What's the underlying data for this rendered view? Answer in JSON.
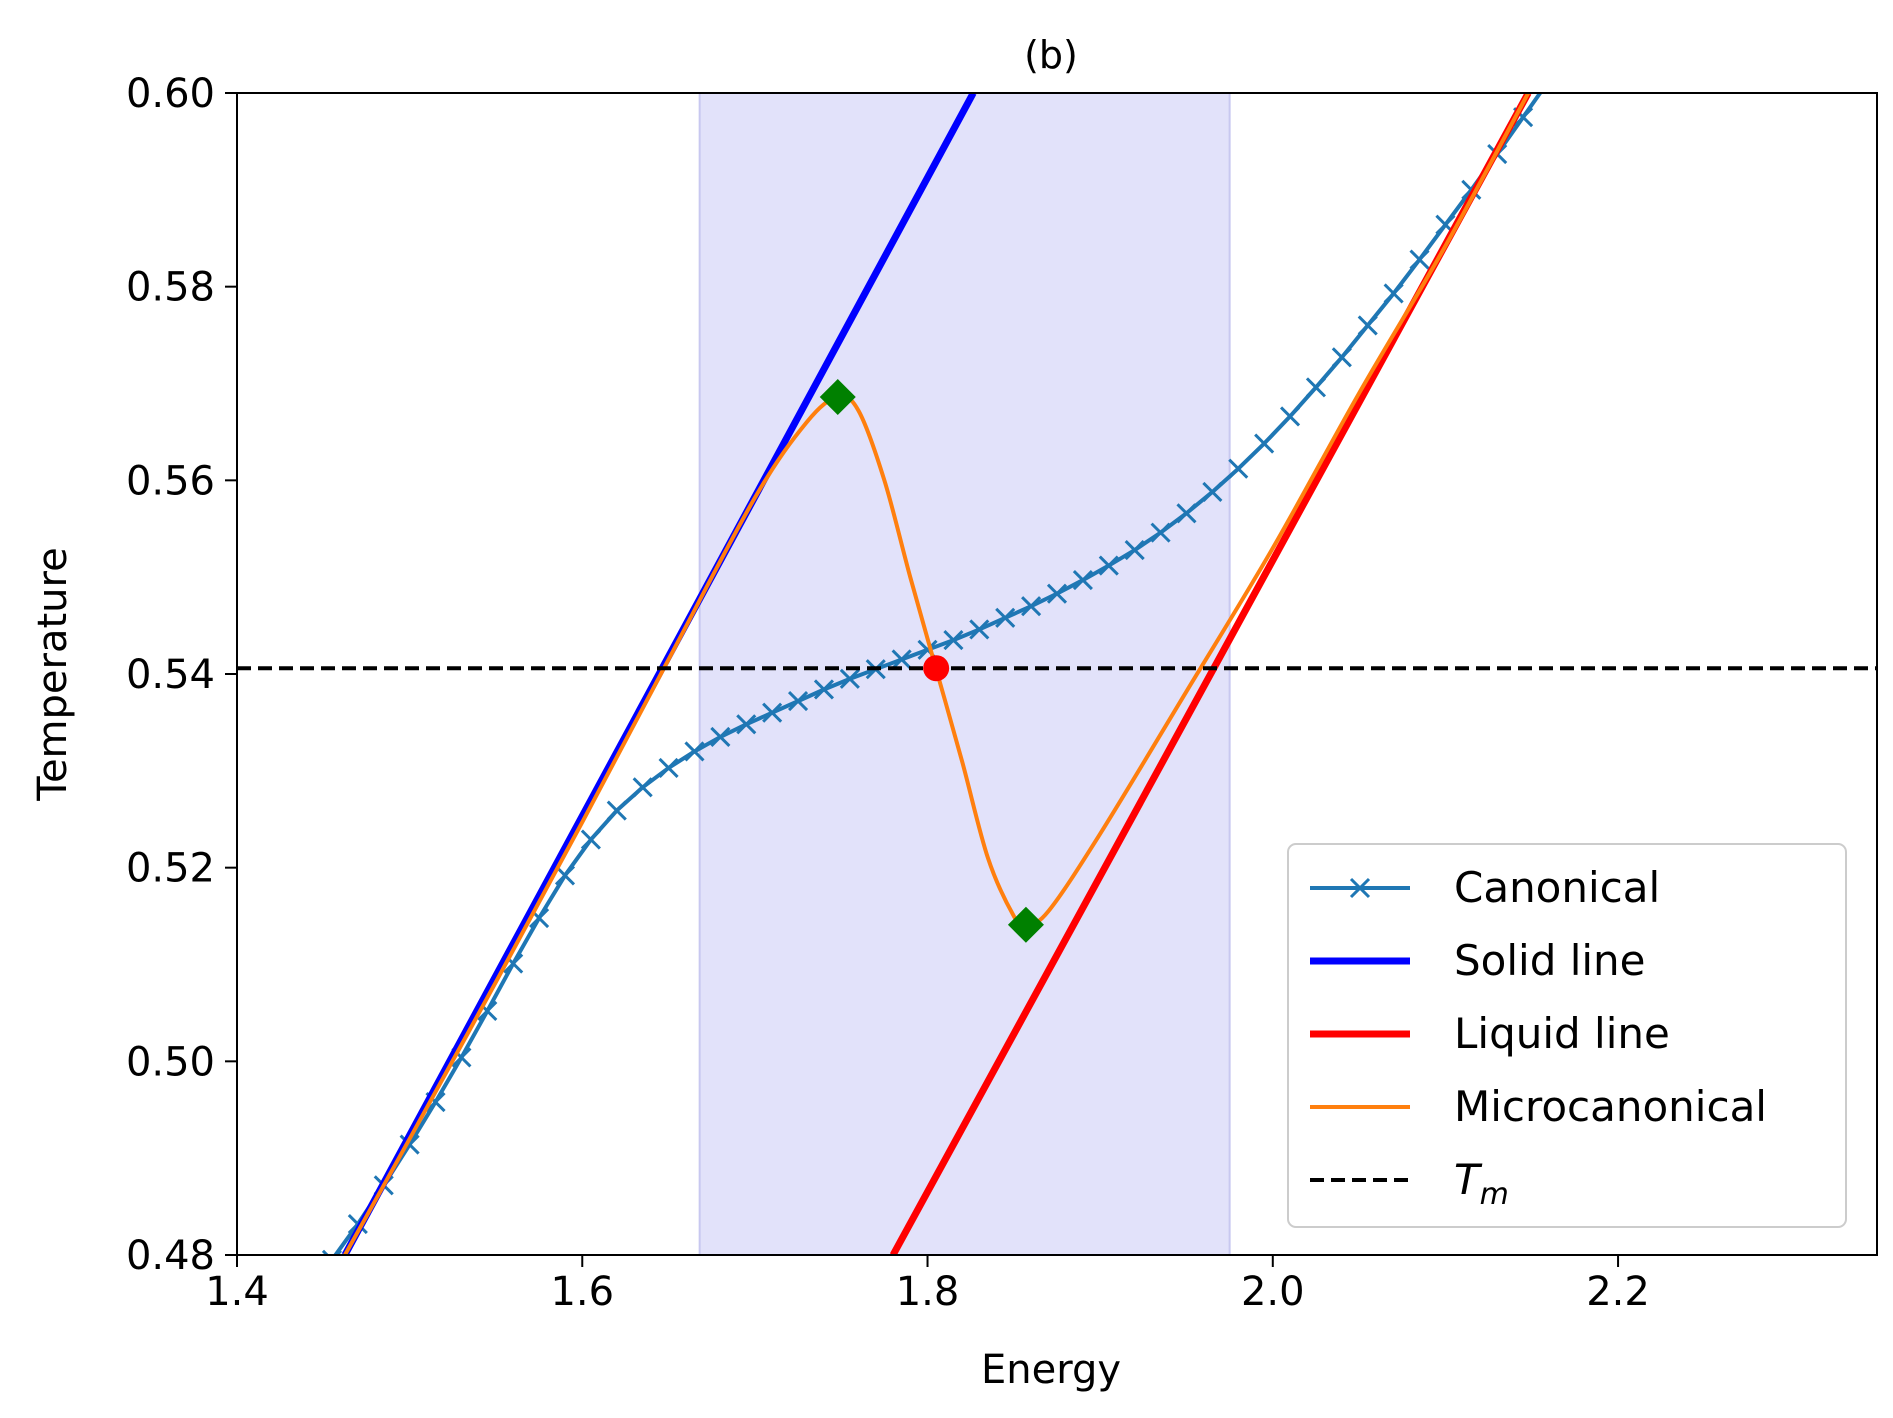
{
  "chart_data": {
    "type": "line",
    "title": "(b)",
    "xlabel": "Energy",
    "ylabel": "Temperature",
    "xlim": [
      1.4,
      2.35
    ],
    "ylim": [
      0.48,
      0.6
    ],
    "xticks": [
      1.4,
      1.6,
      1.8,
      2.0,
      2.2
    ],
    "xtick_labels": [
      "1.4",
      "1.6",
      "1.8",
      "2.0",
      "2.2"
    ],
    "yticks": [
      0.48,
      0.5,
      0.52,
      0.54,
      0.56,
      0.58,
      0.6
    ],
    "ytick_labels": [
      "0.48",
      "0.50",
      "0.52",
      "0.54",
      "0.56",
      "0.58",
      "0.60"
    ],
    "grid": false,
    "legend_position": "bottom-right",
    "shaded_region": {
      "x": [
        1.668,
        1.975
      ],
      "color": "#e2e2fa",
      "edge": "#c8c8f0"
    },
    "series": [
      {
        "name": "Canonical",
        "color": "#1f77b4",
        "style": "line-with-x-markers",
        "x": [
          1.455,
          1.47,
          1.485,
          1.5,
          1.515,
          1.53,
          1.545,
          1.56,
          1.575,
          1.59,
          1.605,
          1.62,
          1.635,
          1.65,
          1.665,
          1.68,
          1.695,
          1.71,
          1.725,
          1.74,
          1.755,
          1.77,
          1.785,
          1.8,
          1.815,
          1.83,
          1.845,
          1.86,
          1.875,
          1.89,
          1.905,
          1.92,
          1.935,
          1.95,
          1.965,
          1.98,
          1.995,
          2.01,
          2.025,
          2.04,
          2.055,
          2.07,
          2.085,
          2.1,
          2.115,
          2.13,
          2.145,
          2.16
        ],
        "y": [
          0.4795,
          0.4832,
          0.4872,
          0.4914,
          0.4958,
          0.5004,
          0.5052,
          0.5101,
          0.5148,
          0.5192,
          0.5229,
          0.5259,
          0.5283,
          0.5303,
          0.532,
          0.5335,
          0.5348,
          0.536,
          0.5372,
          0.5384,
          0.5395,
          0.5405,
          0.5415,
          0.5425,
          0.5435,
          0.5446,
          0.5458,
          0.547,
          0.5483,
          0.5497,
          0.5512,
          0.5528,
          0.5546,
          0.5566,
          0.5588,
          0.5612,
          0.5638,
          0.5666,
          0.5696,
          0.5727,
          0.576,
          0.5793,
          0.5828,
          0.5864,
          0.59,
          0.5937,
          0.5975,
          0.6013
        ]
      },
      {
        "name": "Solid line",
        "color": "#0000ff",
        "style": "thick-line",
        "x": [
          1.4625,
          1.8265
        ],
        "y": [
          0.48,
          0.6
        ]
      },
      {
        "name": "Liquid line",
        "color": "#ff0000",
        "style": "thick-line",
        "x": [
          1.78,
          2.148
        ],
        "y": [
          0.48,
          0.6
        ]
      },
      {
        "name": "Microcanonical",
        "color": "#ff7f0e",
        "style": "line",
        "x": [
          1.4625,
          1.5,
          1.55,
          1.6,
          1.65,
          1.7,
          1.73,
          1.748,
          1.76,
          1.775,
          1.79,
          1.805,
          1.82,
          1.835,
          1.85,
          1.857,
          1.87,
          1.9,
          1.95,
          2.0,
          2.05,
          2.1,
          2.148
        ],
        "y": [
          0.48,
          0.492,
          0.5082,
          0.5247,
          0.5415,
          0.5582,
          0.566,
          0.5686,
          0.5672,
          0.56,
          0.55,
          0.5405,
          0.531,
          0.521,
          0.515,
          0.5141,
          0.5155,
          0.5235,
          0.5382,
          0.553,
          0.569,
          0.5842,
          0.6
        ]
      },
      {
        "name": "T_m",
        "label_main": "T",
        "label_sub": "m",
        "color": "#000000",
        "style": "dashed",
        "y": 0.5406
      }
    ],
    "annotations": {
      "diamonds": {
        "color": "#008000",
        "points": [
          [
            1.748,
            0.5686
          ],
          [
            1.857,
            0.5141
          ]
        ]
      },
      "dot": {
        "color": "#ff0000",
        "points": [
          [
            1.805,
            0.5406
          ]
        ]
      }
    }
  }
}
